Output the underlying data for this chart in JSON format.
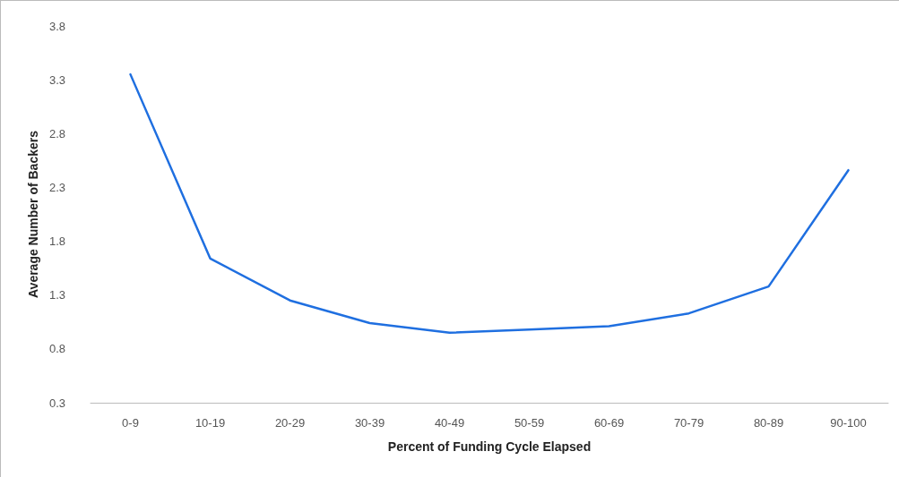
{
  "chart_data": {
    "type": "line",
    "xlabel": "Percent of Funding Cycle Elapsed",
    "ylabel": "Average Number of Backers",
    "categories": [
      "0-9",
      "10-19",
      "20-29",
      "30-39",
      "40-49",
      "50-59",
      "60-69",
      "70-79",
      "80-89",
      "90-100"
    ],
    "series": [
      {
        "color": "#1f6fe0",
        "values": [
          3.35,
          1.64,
          1.25,
          1.04,
          0.95,
          0.98,
          1.01,
          1.13,
          1.38,
          2.46
        ]
      }
    ],
    "ylim": [
      0.3,
      3.8
    ],
    "yticks": [
      0.3,
      0.8,
      1.3,
      1.8,
      2.3,
      2.8,
      3.3,
      3.8
    ],
    "grid": false,
    "marker": "none",
    "line_style": "solid"
  }
}
